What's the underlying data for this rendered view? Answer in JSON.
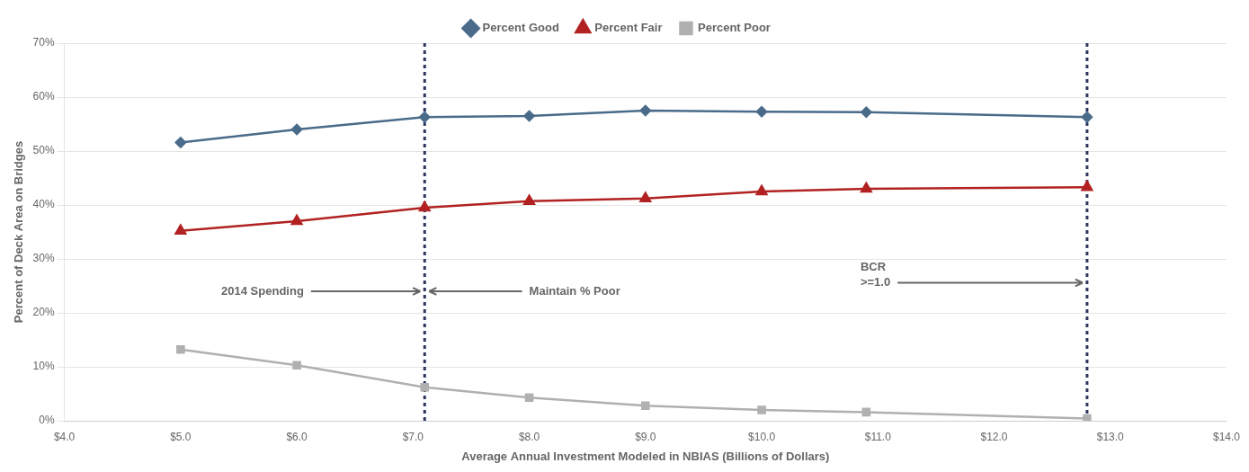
{
  "chart_data": {
    "type": "line",
    "x_label": "Average Annual Investment Modeled in NBIAS (Billions of Dollars)",
    "y_label": "Percent of Deck Area on Bridges",
    "x": [
      5.0,
      6.0,
      7.1,
      8.0,
      9.0,
      10.0,
      10.9,
      12.8
    ],
    "series": [
      {
        "name": "Percent Good",
        "color": "#4a6b8a",
        "marker": "diamond",
        "values": [
          51.6,
          54.0,
          56.3,
          56.5,
          57.5,
          57.3,
          57.2,
          56.3
        ]
      },
      {
        "name": "Percent Fair",
        "color": "#b22222",
        "marker": "triangle",
        "values": [
          35.2,
          37.0,
          39.5,
          40.7,
          41.2,
          42.5,
          43.0,
          43.3
        ]
      },
      {
        "name": "Percent Poor",
        "color": "#b0b0b0",
        "marker": "square",
        "values": [
          13.2,
          10.3,
          6.2,
          4.3,
          2.8,
          2.0,
          1.6,
          0.4
        ]
      }
    ],
    "xlim": [
      4.0,
      14.0
    ],
    "ylim": [
      0,
      70
    ],
    "xticks": [
      {
        "value": 4.0,
        "label": "$4.0"
      },
      {
        "value": 5.0,
        "label": "$5.0"
      },
      {
        "value": 6.0,
        "label": "$6.0"
      },
      {
        "value": 7.0,
        "label": "$7.0"
      },
      {
        "value": 8.0,
        "label": "$8.0"
      },
      {
        "value": 9.0,
        "label": "$9.0"
      },
      {
        "value": 10.0,
        "label": "$10.0"
      },
      {
        "value": 11.0,
        "label": "$11.0"
      },
      {
        "value": 12.0,
        "label": "$12.0"
      },
      {
        "value": 13.0,
        "label": "$13.0"
      },
      {
        "value": 14.0,
        "label": "$14.0"
      }
    ],
    "yticks": [
      {
        "value": 0,
        "label": "0%"
      },
      {
        "value": 10,
        "label": "10%"
      },
      {
        "value": 20,
        "label": "20%"
      },
      {
        "value": 30,
        "label": "30%"
      },
      {
        "value": 40,
        "label": "40%"
      },
      {
        "value": 50,
        "label": "50%"
      },
      {
        "value": 60,
        "label": "60%"
      },
      {
        "value": 70,
        "label": "70%"
      }
    ],
    "vlines": [
      {
        "x": 7.1,
        "color": "#2d3560"
      },
      {
        "x": 12.8,
        "color": "#2d3560"
      }
    ],
    "annotations": [
      {
        "text": "2014 Spending",
        "x": 5.35,
        "y": 24,
        "arrow_to": 7.1
      },
      {
        "text": "Maintain % Poor",
        "x": 8.0,
        "y": 24,
        "arrow_to": 7.1
      },
      {
        "text": "BCR\n>=1.0",
        "x": 10.85,
        "y": 27,
        "arrow_to": 12.8
      }
    ],
    "grid": "y",
    "legend": "top"
  }
}
